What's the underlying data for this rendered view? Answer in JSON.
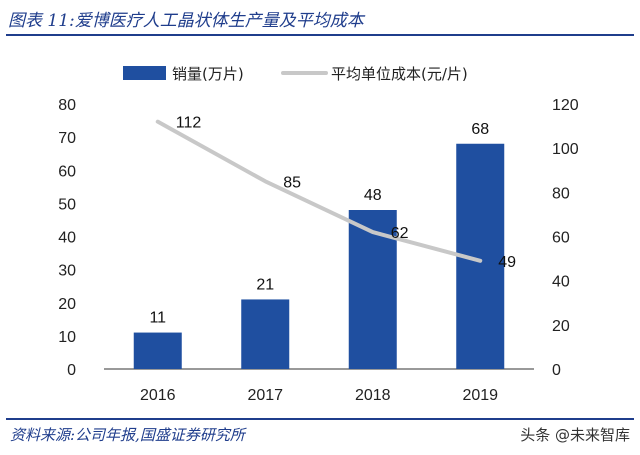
{
  "header": {
    "title": "图表 11:爱博医疗人工晶状体生产量及平均成本"
  },
  "footer": {
    "source": "资料来源:公司年报,国盛证券研究所",
    "watermark": "头条 @未来智库"
  },
  "chart_data": {
    "type": "bar+line",
    "categories": [
      "2016",
      "2017",
      "2018",
      "2019"
    ],
    "series": [
      {
        "name": "销量(万片)",
        "type": "bar",
        "axis": "left",
        "color": "#1f4fa0",
        "values": [
          11,
          21,
          48,
          68
        ]
      },
      {
        "name": "平均单位成本(元/片)",
        "type": "line",
        "axis": "right",
        "color": "#c8c8c8",
        "values": [
          112,
          85,
          62,
          49
        ]
      }
    ],
    "y_left": {
      "min": 0,
      "max": 80,
      "step": 10
    },
    "y_right": {
      "min": 0,
      "max": 120,
      "step": 20
    },
    "legend_position": "top"
  }
}
